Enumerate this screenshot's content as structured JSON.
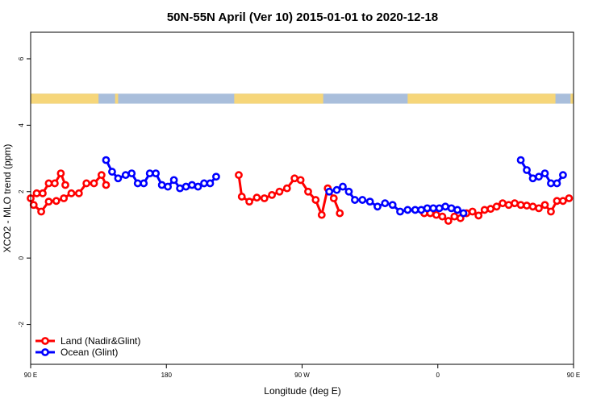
{
  "chart_data": {
    "type": "line",
    "title": "50N-55N April (Ver 10)   2015-01-01 to 2020-12-18",
    "xlabel": "Longitude (deg E)",
    "ylabel": "XCO2 - MLO trend (ppm)",
    "xlim": [
      90,
      450
    ],
    "ylim": [
      -3.2,
      6.8
    ],
    "xticks": [
      {
        "value": 90,
        "label": "90 E"
      },
      {
        "value": 180,
        "label": "180"
      },
      {
        "value": 270,
        "label": "90 W"
      },
      {
        "value": 360,
        "label": "0"
      },
      {
        "value": 450,
        "label": "90 E"
      }
    ],
    "yticks": [
      {
        "value": -2,
        "label": "-2"
      },
      {
        "value": 0,
        "label": "0"
      },
      {
        "value": 2,
        "label": "2"
      },
      {
        "value": 4,
        "label": "4"
      },
      {
        "value": 6,
        "label": "6"
      }
    ],
    "map_band": {
      "y_min": 4.65,
      "y_max": 4.95,
      "land_color": "#f6d67a",
      "ocean_color": "#a9bedb"
    },
    "legend": {
      "position": "bottom-left"
    },
    "series": [
      {
        "name": "Land (Nadir&Glint)",
        "color": "#ff0000",
        "segments": [
          [
            [
              92,
              1.6
            ],
            [
              97,
              1.4
            ],
            [
              102,
              1.7
            ],
            [
              107,
              1.72
            ],
            [
              112,
              1.8
            ],
            [
              117,
              1.95
            ],
            [
              122,
              1.95
            ],
            [
              127,
              2.25
            ],
            [
              132,
              2.25
            ],
            [
              137,
              2.5
            ],
            [
              140,
              2.2
            ]
          ],
          [
            [
              228,
              2.5
            ],
            [
              230,
              1.85
            ],
            [
              235,
              1.7
            ],
            [
              240,
              1.82
            ],
            [
              245,
              1.8
            ],
            [
              250,
              1.9
            ],
            [
              255,
              2.0
            ],
            [
              260,
              2.1
            ],
            [
              265,
              2.4
            ],
            [
              269,
              2.35
            ],
            [
              274,
              2.0
            ],
            [
              279,
              1.75
            ],
            [
              283,
              1.3
            ],
            [
              287,
              2.1
            ],
            [
              291,
              1.8
            ],
            [
              295,
              1.35
            ]
          ],
          [
            [
              351,
              1.35
            ],
            [
              355,
              1.35
            ],
            [
              359,
              1.3
            ],
            [
              363,
              1.25
            ],
            [
              367,
              1.12
            ],
            [
              371,
              1.25
            ],
            [
              375,
              1.2
            ],
            [
              379,
              1.35
            ],
            [
              383,
              1.4
            ],
            [
              387,
              1.28
            ],
            [
              391,
              1.45
            ],
            [
              395,
              1.48
            ],
            [
              399,
              1.55
            ],
            [
              403,
              1.65
            ],
            [
              407,
              1.6
            ],
            [
              411,
              1.65
            ],
            [
              415,
              1.6
            ],
            [
              419,
              1.58
            ],
            [
              423,
              1.55
            ],
            [
              427,
              1.5
            ],
            [
              431,
              1.6
            ],
            [
              435,
              1.4
            ],
            [
              439,
              1.72
            ],
            [
              443,
              1.72
            ],
            [
              447,
              1.8
            ]
          ],
          [
            [
              90,
              1.8
            ],
            [
              94,
              1.95
            ],
            [
              98,
              1.95
            ],
            [
              102,
              2.25
            ],
            [
              106,
              2.25
            ],
            [
              110,
              2.55
            ],
            [
              113,
              2.2
            ]
          ]
        ]
      },
      {
        "name": "Ocean (Glint)",
        "color": "#0000ff",
        "segments": [
          [
            [
              140,
              2.95
            ],
            [
              144,
              2.6
            ],
            [
              148,
              2.4
            ],
            [
              153,
              2.5
            ],
            [
              157,
              2.55
            ],
            [
              161,
              2.25
            ],
            [
              165,
              2.25
            ],
            [
              169,
              2.55
            ],
            [
              173,
              2.55
            ],
            [
              177,
              2.2
            ],
            [
              181,
              2.15
            ],
            [
              185,
              2.35
            ],
            [
              189,
              2.1
            ],
            [
              193,
              2.15
            ],
            [
              197,
              2.2
            ],
            [
              201,
              2.15
            ],
            [
              205,
              2.25
            ],
            [
              209,
              2.25
            ],
            [
              213,
              2.45
            ]
          ],
          [
            [
              288,
              2.0
            ],
            [
              293,
              2.05
            ],
            [
              297,
              2.15
            ],
            [
              301,
              2.0
            ],
            [
              305,
              1.75
            ],
            [
              310,
              1.75
            ],
            [
              315,
              1.7
            ],
            [
              320,
              1.55
            ],
            [
              325,
              1.65
            ],
            [
              330,
              1.6
            ],
            [
              335,
              1.4
            ],
            [
              340,
              1.45
            ],
            [
              345,
              1.45
            ],
            [
              349,
              1.45
            ],
            [
              353,
              1.5
            ],
            [
              357,
              1.5
            ],
            [
              361,
              1.5
            ],
            [
              365,
              1.55
            ],
            [
              369,
              1.5
            ],
            [
              373,
              1.45
            ],
            [
              377,
              1.35
            ]
          ],
          [
            [
              415,
              2.95
            ],
            [
              419,
              2.65
            ],
            [
              423,
              2.4
            ],
            [
              427,
              2.45
            ],
            [
              431,
              2.55
            ],
            [
              435,
              2.25
            ],
            [
              439,
              2.25
            ],
            [
              443,
              2.5
            ]
          ]
        ]
      }
    ]
  }
}
